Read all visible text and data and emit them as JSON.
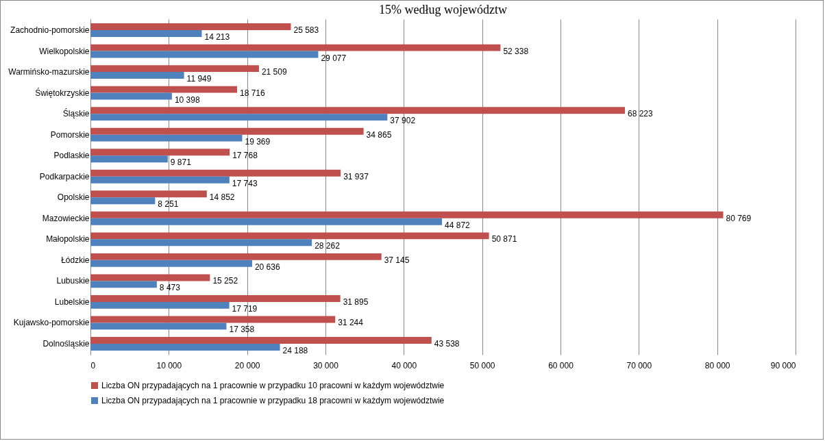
{
  "chart_data": {
    "type": "bar",
    "orientation": "horizontal",
    "title": "15% według województw",
    "categories": [
      "Zachodnio-pomorskie",
      "Wielkopolskie",
      "Warmińsko-mazurskie",
      "Świętokrzyskie",
      "Śląskie",
      "Pomorskie",
      "Podlaskie",
      "Podkarpackie",
      "Opolskie",
      "Mazowieckie",
      "Małopolskie",
      "Łódzkie",
      "Lubuskie",
      "Lubelskie",
      "Kujawsko-pomorskie",
      "Dolnośląskie"
    ],
    "series": [
      {
        "name": "Liczba ON przypadających na 1 pracownie w przypadku 10 pracowni w każdym województwie",
        "color": "#c0504d",
        "values": [
          25583,
          52338,
          21509,
          18716,
          68223,
          34865,
          17768,
          31937,
          14852,
          80769,
          50871,
          37145,
          15252,
          31895,
          31244,
          43538
        ],
        "value_labels": [
          "25 583",
          "52 338",
          "21 509",
          "18 716",
          "68 223",
          "34 865",
          "17 768",
          "31 937",
          "14 852",
          "80 769",
          "50 871",
          "37 145",
          "15 252",
          "31 895",
          "31 244",
          "43 538"
        ]
      },
      {
        "name": "Liczba ON przypadających na 1 pracownie w przypadku 18 pracowni w każdym województwie",
        "color": "#4f81bd",
        "values": [
          14213,
          29077,
          11949,
          10398,
          37902,
          19369,
          9871,
          17743,
          8251,
          44872,
          28262,
          20636,
          8473,
          17719,
          17358,
          24188
        ],
        "value_labels": [
          "14 213",
          "29 077",
          "11 949",
          "10 398",
          "37 902",
          "19 369",
          "9 871",
          "17 743",
          "8 251",
          "44 872",
          "28 262",
          "20 636",
          "8 473",
          "17 719",
          "17 358",
          "24 188"
        ]
      }
    ],
    "xlim": [
      0,
      90000
    ],
    "xticks": [
      0,
      {
        "value": 10000,
        "label": "10 000"
      },
      {
        "value": 20000,
        "label": "20 000"
      },
      {
        "value": 30000,
        "label": "30 000"
      },
      {
        "value": 40000,
        "label": "40 000"
      },
      {
        "value": 50000,
        "label": "50 000"
      },
      {
        "value": 60000,
        "label": "60 000"
      },
      {
        "value": 70000,
        "label": "70 000"
      },
      {
        "value": 80000,
        "label": "80 000"
      },
      {
        "value": 90000,
        "label": "90 000"
      }
    ],
    "grid": "x",
    "legend": "bottom"
  }
}
